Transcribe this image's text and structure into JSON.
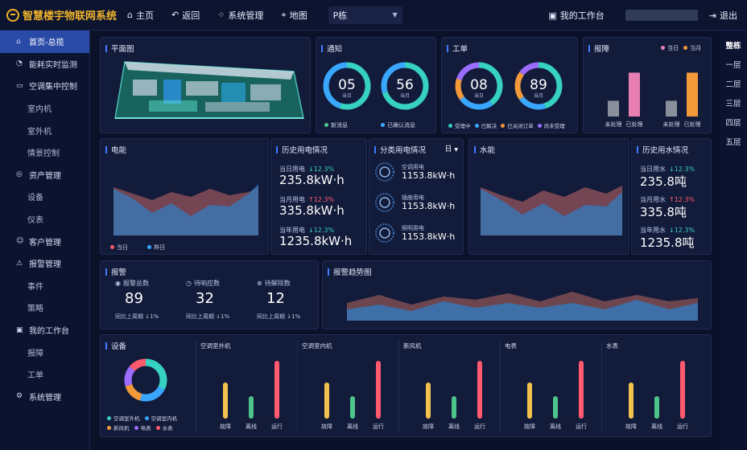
{
  "app": {
    "title": "智慧楼宇物联网系统"
  },
  "nav": {
    "home": "主页",
    "back": "返回",
    "system": "系统管理",
    "map": "地图",
    "building_select": "P栋",
    "workbench": "我的工作台",
    "logout": "退出"
  },
  "icons": {
    "logo": "logo-icon",
    "home": "home-icon",
    "back": "back-icon",
    "system": "grid-icon",
    "map": "location-icon",
    "workbench": "workbench-icon",
    "logout": "logout-icon"
  },
  "colors": {
    "accent": "#2a4aa8",
    "teal": "#36d1c0",
    "blue": "#3aa7ff",
    "orange": "#f2993a",
    "purple": "#9b6cff",
    "pink": "#e77fb3",
    "red": "#ff5a6e",
    "green": "#4cc48a",
    "yellow": "#f0b429"
  },
  "sidebar": {
    "items": [
      {
        "label": "首页-总揽",
        "icon": "home-icon",
        "active": true
      },
      {
        "label": "能耗实时监测",
        "icon": "gauge-icon"
      },
      {
        "label": "空调集中控制",
        "icon": "aircon-icon"
      },
      {
        "label": "室内机",
        "sub": true
      },
      {
        "label": "室外机",
        "sub": true
      },
      {
        "label": "情景控制",
        "sub": true
      },
      {
        "label": "资产管理",
        "icon": "asset-icon"
      },
      {
        "label": "设备",
        "sub": true
      },
      {
        "label": "仪表",
        "sub": true
      },
      {
        "label": "客户管理",
        "icon": "user-icon"
      },
      {
        "label": "报警管理",
        "icon": "alarm-icon"
      },
      {
        "label": "事件",
        "sub": true
      },
      {
        "label": "策略",
        "sub": true
      },
      {
        "label": "我的工作台",
        "icon": "workbench-icon"
      },
      {
        "label": "报障",
        "sub": true
      },
      {
        "label": "工单",
        "sub": true
      },
      {
        "label": "系统管理",
        "icon": "settings-icon"
      }
    ]
  },
  "floors": [
    "整栋",
    "一层",
    "二层",
    "三层",
    "四层",
    "五层"
  ],
  "plan": {
    "title": "平面图"
  },
  "notice": {
    "title": "通知",
    "rings": [
      {
        "value": "05",
        "label": "当日",
        "legend": "新消息"
      },
      {
        "value": "56",
        "label": "当月",
        "legend": "已确认消息"
      }
    ]
  },
  "workorder": {
    "title": "工单",
    "rings": [
      {
        "value": "08",
        "label": "当日"
      },
      {
        "value": "89",
        "label": "当月"
      }
    ],
    "legend": [
      "受理中",
      "已解决",
      "已关闭订单",
      "尚未受理"
    ]
  },
  "fault": {
    "title": "报障",
    "legend": [
      "当日",
      "当月"
    ],
    "bars": [
      {
        "label": "未处理",
        "value": 0.28
      },
      {
        "label": "已处理",
        "value": 0.78
      },
      {
        "label": "未处理",
        "value": 0.28
      },
      {
        "label": "已处理",
        "value": 0.78
      }
    ]
  },
  "electric": {
    "title": "电能",
    "legend": [
      "当日",
      "昨日"
    ]
  },
  "elec_history": {
    "title": "历史用电情况",
    "items": [
      {
        "label": "当日用电",
        "trend": "↓12.3%",
        "dir": "down",
        "value": "235.8kW·h"
      },
      {
        "label": "当月用电",
        "trend": "↑12.3%",
        "dir": "up",
        "value": "335.8kW·h"
      },
      {
        "label": "当年用电",
        "trend": "↓12.3%",
        "dir": "down",
        "value": "1235.8kW·h"
      }
    ]
  },
  "category": {
    "title": "分类用电情况",
    "period": "日",
    "items": [
      {
        "label": "空调用电",
        "value": "1153.8kW·h"
      },
      {
        "label": "插座用电",
        "value": "1153.8kW·h"
      },
      {
        "label": "照明用电",
        "value": "1153.8kW·h"
      }
    ]
  },
  "water": {
    "title": "水能"
  },
  "water_history": {
    "title": "历史用水情况",
    "items": [
      {
        "label": "当日用水",
        "trend": "↓12.3%",
        "dir": "down",
        "value": "235.8吨"
      },
      {
        "label": "当月用水",
        "trend": "↑12.3%",
        "dir": "up",
        "value": "335.8吨"
      },
      {
        "label": "当年用水",
        "trend": "↓12.3%",
        "dir": "down",
        "value": "1235.8吨"
      }
    ]
  },
  "alarm": {
    "title": "报警",
    "items": [
      {
        "label": "报警总数",
        "icon": "bell-icon",
        "value": "89",
        "compare": "同比上周期 ↓1%"
      },
      {
        "label": "待响应数",
        "icon": "clock-icon",
        "value": "32",
        "compare": "同比上周期 ↓1%"
      },
      {
        "label": "待解除数",
        "icon": "close-circle-icon",
        "value": "12",
        "compare": "同比上周期 ↓1%"
      }
    ]
  },
  "alarm_trend": {
    "title": "报警趋势图"
  },
  "devices": {
    "title": "设备",
    "legend": [
      "空调室外机",
      "空调室内机",
      "新风机",
      "电表",
      "水表"
    ],
    "groups": [
      {
        "title": "空调室外机",
        "bars": [
          {
            "label": "故障",
            "value": 0.45
          },
          {
            "label": "离线",
            "value": 0.28
          },
          {
            "label": "运行",
            "value": 0.72
          }
        ]
      },
      {
        "title": "空调室内机",
        "bars": [
          {
            "label": "故障",
            "value": 0.45
          },
          {
            "label": "离线",
            "value": 0.28
          },
          {
            "label": "运行",
            "value": 0.72
          }
        ]
      },
      {
        "title": "新风机",
        "bars": [
          {
            "label": "故障",
            "value": 0.45
          },
          {
            "label": "离线",
            "value": 0.28
          },
          {
            "label": "运行",
            "value": 0.72
          }
        ]
      },
      {
        "title": "电表",
        "bars": [
          {
            "label": "故障",
            "value": 0.45
          },
          {
            "label": "离线",
            "value": 0.28
          },
          {
            "label": "运行",
            "value": 0.72
          }
        ]
      },
      {
        "title": "水表",
        "bars": [
          {
            "label": "故障",
            "value": 0.45
          },
          {
            "label": "离线",
            "value": 0.28
          },
          {
            "label": "运行",
            "value": 0.72
          }
        ]
      }
    ]
  }
}
